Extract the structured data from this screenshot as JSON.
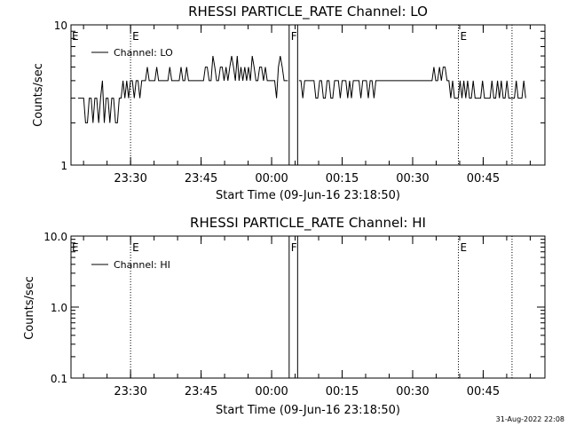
{
  "chart_data": [
    {
      "type": "line",
      "title": "RHESSI PARTICLE_RATE Channel: LO",
      "xlabel": "Start Time (09-Jun-16 23:18:50)",
      "ylabel": "Counts/sec",
      "y_scale": "log",
      "ylim": [
        1,
        10
      ],
      "y_ticks": [
        {
          "value": 1,
          "label": "1"
        },
        {
          "value": 10,
          "label": "10"
        }
      ],
      "x_range_minutes": [
        -1.5,
        54.5
      ],
      "x_ticks": [
        {
          "minute": 11.17,
          "label": "23:30"
        },
        {
          "minute": 26.17,
          "label": "23:45"
        },
        {
          "minute": 41.17,
          "label": "00:00"
        },
        {
          "minute": 56.17,
          "label": "00:15"
        },
        {
          "minute": 71.17,
          "label": "00:30"
        },
        {
          "minute": 86.17,
          "label": "00:45"
        }
      ],
      "legend": {
        "label": "Channel: LO",
        "placement": "top-left"
      },
      "markers": [
        {
          "minute": 11.17,
          "style": "dotted",
          "label": "E"
        },
        {
          "minute": 44.9,
          "style": "solid",
          "label": "F"
        },
        {
          "minute": 46.7,
          "style": "solid",
          "label": ""
        },
        {
          "minute": 80.9,
          "style": "dotted",
          "label": "E"
        },
        {
          "minute": 92.3,
          "style": "dotted",
          "label": ""
        }
      ],
      "series": [
        {
          "name": "Channel: LO",
          "start_minute": 0,
          "end_minute": 95.2,
          "values": [
            3,
            3,
            3,
            3,
            2,
            2,
            3,
            3,
            2,
            3,
            3,
            2,
            3,
            4,
            2,
            3,
            3,
            2,
            3,
            3,
            2,
            2,
            3,
            3,
            4,
            3,
            4,
            3,
            4,
            4,
            3,
            4,
            4,
            3,
            4,
            4,
            4,
            5,
            4,
            4,
            4,
            4,
            5,
            4,
            4,
            4,
            4,
            4,
            4,
            5,
            4,
            4,
            4,
            4,
            4,
            5,
            4,
            4,
            5,
            4,
            4,
            4,
            4,
            4,
            4,
            4,
            4,
            4,
            5,
            5,
            4,
            4,
            6,
            5,
            4,
            4,
            5,
            5,
            4,
            5,
            4,
            5,
            6,
            5,
            4,
            6,
            4,
            5,
            4,
            5,
            4,
            5,
            4,
            6,
            5,
            4,
            4,
            5,
            5,
            4,
            5,
            4,
            4,
            4,
            4,
            4,
            3,
            5,
            6,
            5,
            4,
            4,
            4,
            4,
            4,
            5,
            3,
            4,
            4,
            4,
            3,
            4,
            4,
            4,
            4,
            4,
            4,
            3,
            3,
            4,
            4,
            3,
            3,
            4,
            4,
            3,
            3,
            4,
            4,
            4,
            3,
            4,
            4,
            4,
            3,
            4,
            3,
            4,
            4,
            4,
            4,
            3,
            4,
            4,
            4,
            3,
            4,
            4,
            3,
            4,
            4,
            4,
            4,
            4,
            4,
            4,
            4,
            4,
            4,
            4,
            4,
            4,
            4,
            4,
            4,
            4,
            4,
            4,
            4,
            4,
            4,
            4,
            4,
            4,
            4,
            4,
            4,
            4,
            4,
            4,
            5,
            4,
            4,
            5,
            4,
            5,
            5,
            4,
            4,
            3,
            4,
            3,
            3,
            3,
            4,
            3,
            4,
            3,
            4,
            3,
            3,
            4,
            3,
            3,
            3,
            3,
            4,
            3,
            3,
            3,
            3,
            4,
            3,
            3,
            4,
            3,
            4,
            3,
            3,
            4,
            3,
            3,
            3,
            3,
            4,
            3,
            3,
            3,
            4,
            3
          ]
        }
      ]
    },
    {
      "type": "line",
      "title": "RHESSI PARTICLE_RATE Channel: HI",
      "xlabel": "Start Time (09-Jun-16 23:18:50)",
      "ylabel": "Counts/sec",
      "y_scale": "log",
      "ylim": [
        0.1,
        10
      ],
      "y_ticks": [
        {
          "value": 0.1,
          "label": "0.1"
        },
        {
          "value": 1,
          "label": "1.0"
        },
        {
          "value": 10,
          "label": "10.0"
        }
      ],
      "x_range_minutes": [
        -1.5,
        54.5
      ],
      "x_ticks": [
        {
          "minute": 11.17,
          "label": "23:30"
        },
        {
          "minute": 26.17,
          "label": "23:45"
        },
        {
          "minute": 41.17,
          "label": "00:00"
        },
        {
          "minute": 56.17,
          "label": "00:15"
        },
        {
          "minute": 71.17,
          "label": "00:30"
        },
        {
          "minute": 86.17,
          "label": "00:45"
        }
      ],
      "legend": {
        "label": "Channel: HI",
        "placement": "top-left"
      },
      "markers": [
        {
          "minute": 11.17,
          "style": "dotted",
          "label": "E"
        },
        {
          "minute": 44.9,
          "style": "solid",
          "label": "F"
        },
        {
          "minute": 46.7,
          "style": "solid",
          "label": ""
        },
        {
          "minute": 80.9,
          "style": "dotted",
          "label": "E"
        },
        {
          "minute": 92.3,
          "style": "dotted",
          "label": ""
        }
      ],
      "series": [
        {
          "name": "Channel: HI",
          "values": []
        }
      ]
    }
  ],
  "footer": {
    "timestamp": "31-Aug-2022 22:08"
  }
}
